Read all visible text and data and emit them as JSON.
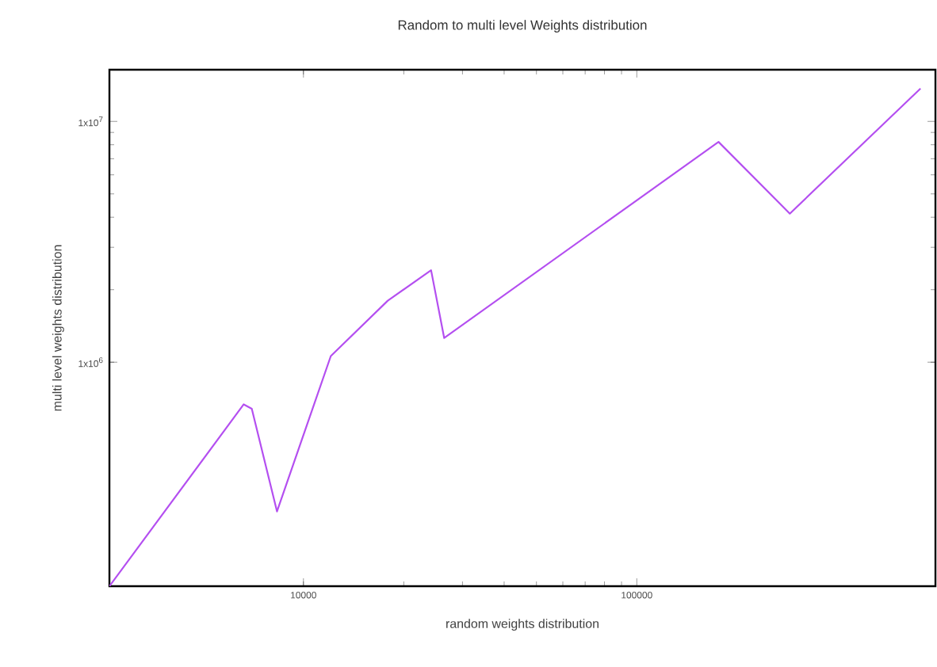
{
  "chart_data": {
    "type": "line",
    "title": "Random to multi level Weights distribution",
    "xlabel": "random weights distribution",
    "ylabel": "multi level weights distribution",
    "log": "xy",
    "xlim": [
      2618,
      787000
    ],
    "ylim": [
      117400,
      16400000
    ],
    "xticks": [
      10000,
      100000
    ],
    "yticks": [
      {
        "value": 1000000,
        "label": "1x10$^{6}$"
      },
      {
        "value": 10000000,
        "label": "1x10$^{7}$"
      }
    ],
    "x": [
      2618,
      6620,
      7000,
      8330,
      12080,
      17900,
      24150,
      26440,
      175900,
      287800,
      709800
    ],
    "series": [
      {
        "color": "#b44ff0",
        "values": [
          117400,
          668000,
          641000,
          240000,
          1060000,
          1800000,
          2410000,
          1260000,
          8220000,
          4140000,
          13700000
        ]
      }
    ]
  }
}
